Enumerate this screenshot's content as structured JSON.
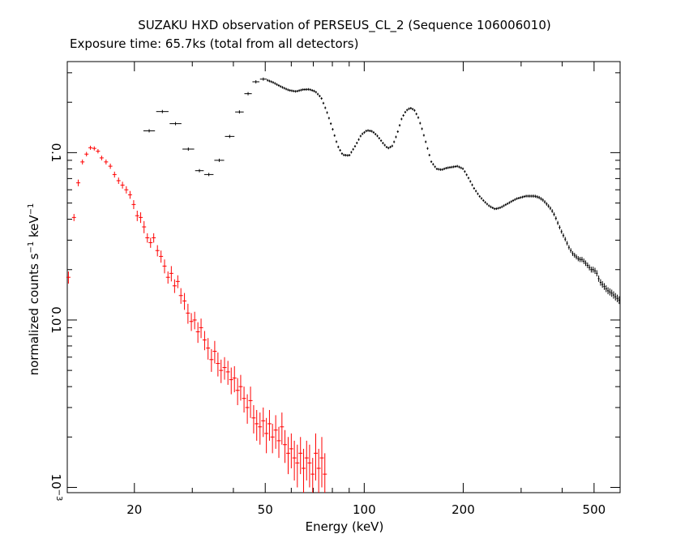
{
  "chart_data": {
    "type": "scatter",
    "title": "SUZAKU HXD observation of PERSEUS_CL_2 (Sequence 106006010)",
    "subtitle": "Exposure time: 65.7ks (total from all detectors)",
    "xlabel": "Energy (keV)",
    "ylabel_main": "normalized counts s",
    "ylabel_exp1": "−1",
    "ylabel_mid": " keV",
    "ylabel_exp2": "−1",
    "xscale": "log",
    "yscale": "log",
    "xlim": [
      12.5,
      600
    ],
    "ylim": [
      0.00093,
      0.35
    ],
    "xticks": [
      {
        "value": 20,
        "label": "20"
      },
      {
        "value": 50,
        "label": "50"
      },
      {
        "value": 100,
        "label": "100"
      },
      {
        "value": 200,
        "label": "200"
      },
      {
        "value": 500,
        "label": "500"
      }
    ],
    "yticks": [
      {
        "value": 0.001,
        "label": "10",
        "exp": "−3"
      },
      {
        "value": 0.01,
        "label": "0.01",
        "exp": ""
      },
      {
        "value": 0.1,
        "label": "0.1",
        "exp": ""
      }
    ],
    "colors": {
      "series_gso": "#000000",
      "series_pin": "#ff0000"
    },
    "series": [
      {
        "color": "#ff0000",
        "points": [
          [
            12.6,
            0.018,
            0.0015
          ],
          [
            13.1,
            0.041,
            0.002
          ],
          [
            13.5,
            0.066,
            0.003
          ],
          [
            13.9,
            0.088,
            0.003
          ],
          [
            14.3,
            0.098,
            0.003
          ],
          [
            14.7,
            0.107,
            0.003
          ],
          [
            15.1,
            0.106,
            0.003
          ],
          [
            15.5,
            0.102,
            0.003
          ],
          [
            15.9,
            0.093,
            0.003
          ],
          [
            16.4,
            0.088,
            0.003
          ],
          [
            16.9,
            0.083,
            0.003
          ],
          [
            17.4,
            0.074,
            0.003
          ],
          [
            17.9,
            0.068,
            0.003
          ],
          [
            18.4,
            0.064,
            0.003
          ],
          [
            18.9,
            0.06,
            0.003
          ],
          [
            19.4,
            0.056,
            0.003
          ],
          [
            19.9,
            0.049,
            0.003
          ],
          [
            20.4,
            0.042,
            0.003
          ],
          [
            20.9,
            0.041,
            0.003
          ],
          [
            21.4,
            0.036,
            0.003
          ],
          [
            21.9,
            0.031,
            0.002
          ],
          [
            22.4,
            0.029,
            0.002
          ],
          [
            22.9,
            0.031,
            0.002
          ],
          [
            23.5,
            0.026,
            0.002
          ],
          [
            24.1,
            0.024,
            0.002
          ],
          [
            24.7,
            0.021,
            0.002
          ],
          [
            25.3,
            0.018,
            0.0015
          ],
          [
            25.9,
            0.019,
            0.002
          ],
          [
            26.5,
            0.016,
            0.0015
          ],
          [
            27.1,
            0.017,
            0.0015
          ],
          [
            27.7,
            0.014,
            0.0015
          ],
          [
            28.4,
            0.013,
            0.0015
          ],
          [
            29.1,
            0.011,
            0.0015
          ],
          [
            29.8,
            0.0098,
            0.0012
          ],
          [
            30.5,
            0.01,
            0.0012
          ],
          [
            31.2,
            0.0085,
            0.0012
          ],
          [
            31.9,
            0.009,
            0.0012
          ],
          [
            32.7,
            0.0076,
            0.001
          ],
          [
            33.5,
            0.0068,
            0.001
          ],
          [
            34.3,
            0.0058,
            0.0009
          ],
          [
            35.1,
            0.0065,
            0.001
          ],
          [
            35.9,
            0.0055,
            0.0009
          ],
          [
            36.7,
            0.005,
            0.0008
          ],
          [
            37.6,
            0.0052,
            0.0008
          ],
          [
            38.5,
            0.0049,
            0.0008
          ],
          [
            39.4,
            0.0044,
            0.0008
          ],
          [
            40.3,
            0.0045,
            0.0008
          ],
          [
            41.2,
            0.0038,
            0.0007
          ],
          [
            42.1,
            0.004,
            0.0007
          ],
          [
            43.1,
            0.0034,
            0.0006
          ],
          [
            44.1,
            0.003,
            0.0006
          ],
          [
            45.1,
            0.0033,
            0.0007
          ],
          [
            46.1,
            0.0026,
            0.0005
          ],
          [
            47.1,
            0.0024,
            0.0005
          ],
          [
            48.2,
            0.0023,
            0.0005
          ],
          [
            49.3,
            0.0025,
            0.0005
          ],
          [
            50.4,
            0.0021,
            0.0005
          ],
          [
            51.5,
            0.0024,
            0.0005
          ],
          [
            52.6,
            0.002,
            0.0004
          ],
          [
            53.8,
            0.0022,
            0.0005
          ],
          [
            55.0,
            0.0019,
            0.0004
          ],
          [
            56.2,
            0.0023,
            0.0005
          ],
          [
            57.4,
            0.0018,
            0.0004
          ],
          [
            58.7,
            0.0016,
            0.0004
          ],
          [
            60.0,
            0.0017,
            0.0004
          ],
          [
            61.3,
            0.0015,
            0.0004
          ],
          [
            62.6,
            0.0014,
            0.0004
          ],
          [
            64.0,
            0.0016,
            0.0004
          ],
          [
            65.4,
            0.0013,
            0.0004
          ],
          [
            66.8,
            0.0015,
            0.0004
          ],
          [
            68.2,
            0.0014,
            0.0004
          ],
          [
            69.7,
            0.0012,
            0.0003
          ],
          [
            71.2,
            0.0016,
            0.0005
          ],
          [
            72.7,
            0.0013,
            0.0004
          ],
          [
            74.3,
            0.0015,
            0.0005
          ],
          [
            75.9,
            0.0012,
            0.0004
          ]
        ]
      },
      {
        "color": "#000000",
        "bins": [
          [
            21.3,
            23.1,
            0.135
          ],
          [
            23.3,
            25.4,
            0.176
          ],
          [
            25.6,
            27.8,
            0.149
          ],
          [
            28.0,
            30.4,
            0.105
          ],
          [
            30.6,
            32.5,
            0.078
          ],
          [
            32.6,
            34.8,
            0.074
          ],
          [
            35.0,
            37.5,
            0.09
          ],
          [
            37.7,
            40.3,
            0.125
          ],
          [
            40.5,
            43.0,
            0.175
          ],
          [
            43.2,
            45.5,
            0.225
          ],
          [
            45.7,
            48.0,
            0.265
          ],
          [
            48.2,
            50.5,
            0.275
          ]
        ],
        "curve": [
          [
            50.5,
            0.272
          ],
          [
            53,
            0.262
          ],
          [
            56,
            0.247
          ],
          [
            59,
            0.236
          ],
          [
            62,
            0.232
          ],
          [
            65,
            0.238
          ],
          [
            68,
            0.239
          ],
          [
            71,
            0.232
          ],
          [
            74,
            0.213
          ],
          [
            77,
            0.175
          ],
          [
            80,
            0.14
          ],
          [
            83,
            0.11
          ],
          [
            86,
            0.097
          ],
          [
            90,
            0.096
          ],
          [
            94,
            0.11
          ],
          [
            98,
            0.128
          ],
          [
            102,
            0.136
          ],
          [
            106,
            0.134
          ],
          [
            110,
            0.125
          ],
          [
            114,
            0.114
          ],
          [
            118,
            0.106
          ],
          [
            122,
            0.11
          ],
          [
            126,
            0.13
          ],
          [
            130,
            0.16
          ],
          [
            134,
            0.178
          ],
          [
            138,
            0.185
          ],
          [
            142,
            0.18
          ],
          [
            146,
            0.162
          ],
          [
            150,
            0.138
          ],
          [
            155,
            0.11
          ],
          [
            160,
            0.088
          ],
          [
            166,
            0.08
          ],
          [
            172,
            0.079
          ],
          [
            178,
            0.081
          ],
          [
            185,
            0.082
          ],
          [
            192,
            0.083
          ],
          [
            200,
            0.08
          ],
          [
            208,
            0.07
          ],
          [
            216,
            0.061
          ],
          [
            224,
            0.055
          ],
          [
            232,
            0.051
          ],
          [
            240,
            0.048
          ],
          [
            250,
            0.046
          ],
          [
            260,
            0.047
          ],
          [
            270,
            0.049
          ],
          [
            280,
            0.051
          ],
          [
            290,
            0.053
          ],
          [
            300,
            0.054
          ],
          [
            310,
            0.055
          ],
          [
            320,
            0.055
          ],
          [
            330,
            0.055
          ],
          [
            340,
            0.054
          ],
          [
            350,
            0.052
          ],
          [
            360,
            0.049
          ],
          [
            370,
            0.046
          ],
          [
            380,
            0.042
          ],
          [
            390,
            0.037
          ],
          [
            400,
            0.033
          ],
          [
            410,
            0.03
          ],
          [
            420,
            0.027
          ],
          [
            430,
            0.025
          ],
          [
            440,
            0.024
          ],
          [
            450,
            0.023
          ],
          [
            460,
            0.023
          ],
          [
            470,
            0.022
          ],
          [
            480,
            0.021
          ],
          [
            490,
            0.02
          ],
          [
            500,
            0.02
          ],
          [
            510,
            0.019
          ],
          [
            520,
            0.017
          ],
          [
            535,
            0.016
          ],
          [
            550,
            0.015
          ],
          [
            565,
            0.0145
          ],
          [
            580,
            0.0138
          ],
          [
            600,
            0.013
          ]
        ]
      }
    ]
  }
}
